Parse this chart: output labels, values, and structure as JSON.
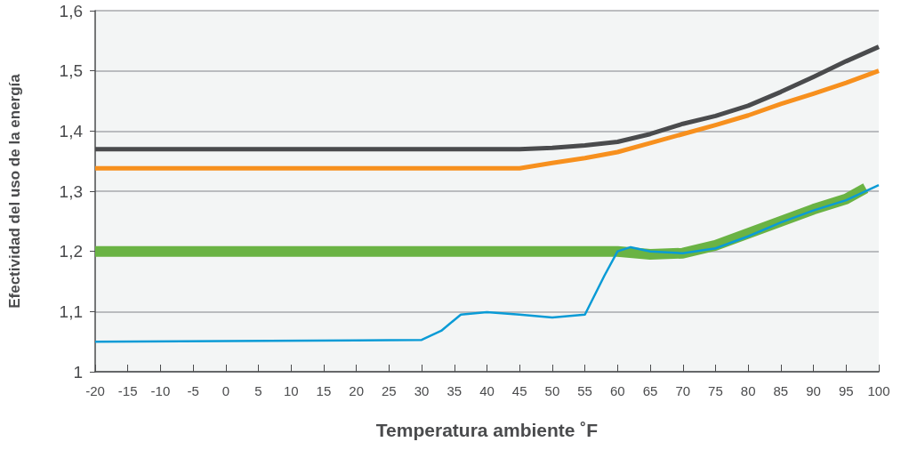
{
  "chart_data": {
    "type": "line",
    "xlabel": "Temperatura ambiente ˚F",
    "ylabel": "Efectividad del uso de la energía",
    "xlim": [
      -20,
      100
    ],
    "xticks": [
      -20,
      -15,
      -10,
      -5,
      0,
      5,
      10,
      15,
      20,
      25,
      30,
      35,
      40,
      45,
      50,
      55,
      60,
      65,
      70,
      75,
      80,
      85,
      90,
      95,
      100
    ],
    "ylim": [
      1,
      1.6
    ],
    "yticks": [
      {
        "value": 1,
        "label": "1"
      },
      {
        "value": 1.1,
        "label": "1,1"
      },
      {
        "value": 1.2,
        "label": "1,2"
      },
      {
        "value": 1.3,
        "label": "1,3"
      },
      {
        "value": 1.4,
        "label": "1,4"
      },
      {
        "value": 1.5,
        "label": "1,5"
      },
      {
        "value": 1.6,
        "label": "1,6"
      }
    ],
    "grid": "y",
    "marker": "none",
    "line_style": "solid",
    "series": [
      {
        "color": "#4a4b4d",
        "x": [
          -20,
          0,
          20,
          40,
          45,
          50,
          55,
          60,
          65,
          70,
          75,
          80,
          85,
          90,
          95,
          100
        ],
        "values": [
          1.37,
          1.37,
          1.37,
          1.37,
          1.37,
          1.372,
          1.376,
          1.382,
          1.395,
          1.412,
          1.425,
          1.442,
          1.465,
          1.49,
          1.516,
          1.54
        ]
      },
      {
        "color": "#f7901e",
        "x": [
          -20,
          0,
          20,
          40,
          45,
          50,
          55,
          60,
          65,
          70,
          75,
          80,
          85,
          90,
          95,
          100
        ],
        "values": [
          1.338,
          1.338,
          1.338,
          1.338,
          1.338,
          1.347,
          1.355,
          1.365,
          1.38,
          1.395,
          1.41,
          1.426,
          1.445,
          1.462,
          1.48,
          1.5
        ]
      },
      {
        "color": "#6ab344",
        "x": [
          -20,
          0,
          20,
          40,
          60,
          65,
          70,
          75,
          80,
          85,
          90,
          95,
          98
        ],
        "values": [
          1.2,
          1.2,
          1.2,
          1.2,
          1.2,
          1.195,
          1.197,
          1.21,
          1.23,
          1.25,
          1.27,
          1.287,
          1.305
        ]
      },
      {
        "color": "#0a9bd6",
        "x": [
          -20,
          0,
          20,
          30,
          33,
          36,
          40,
          45,
          50,
          55,
          58,
          60,
          62,
          65,
          70,
          75,
          80,
          85,
          90,
          95,
          100
        ],
        "values": [
          1.05,
          1.051,
          1.052,
          1.053,
          1.068,
          1.095,
          1.099,
          1.095,
          1.09,
          1.095,
          1.16,
          1.2,
          1.207,
          1.2,
          1.197,
          1.205,
          1.225,
          1.248,
          1.268,
          1.285,
          1.31
        ]
      }
    ]
  }
}
